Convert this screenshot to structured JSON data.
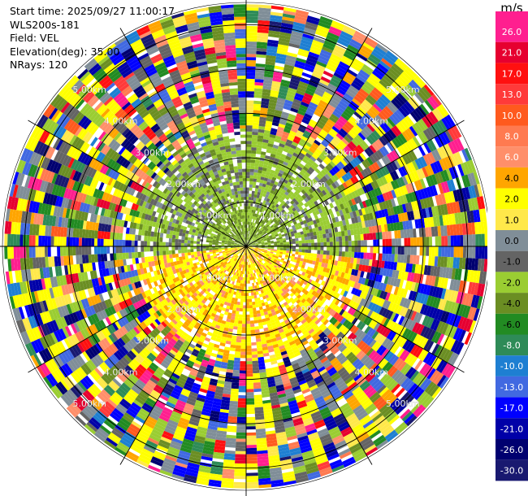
{
  "info": {
    "start_time": "Start time: 2025/09/27 11:00:17",
    "instrument": "WLS200s-181",
    "field": "Field: VEL",
    "elevation": "Elevation(deg): 35.00",
    "nrays": "NRays: 120"
  },
  "chart_data": {
    "type": "heatmap",
    "projection": "polar PPI",
    "field": "VEL",
    "units": "m/s",
    "nrays": 120,
    "elevation_deg": 35.0,
    "range_rings_km": [
      1.0,
      2.0,
      3.0,
      4.0,
      5.0
    ],
    "range_labels": [
      "1.00km",
      "2.00km",
      "3.00km",
      "4.00km",
      "5.00km"
    ],
    "max_range_km": 5.5,
    "colorbar": {
      "label": "m/s",
      "tick_labels": [
        "26.0",
        "21.0",
        "17.0",
        "13.0",
        "10.0",
        "8.0",
        "6.0",
        "4.0",
        "2.0",
        "1.0",
        "0.0",
        "-1.0",
        "-2.0",
        "-4.0",
        "-6.0",
        "-8.0",
        "-10.0",
        "-13.0",
        "-17.0",
        "-21.0",
        "-26.0",
        "-30.0"
      ],
      "colors": [
        "#ff1f8f",
        "#e60030",
        "#ff1010",
        "#ff3a3a",
        "#ff5a1e",
        "#ff7a50",
        "#ff8f6a",
        "#ffa500",
        "#ffff00",
        "#ffe84a",
        "#808e98",
        "#646464",
        "#9acd32",
        "#6b8e23",
        "#228b22",
        "#2e8b57",
        "#1e7fd2",
        "#4169e1",
        "#0000ff",
        "#0000a8",
        "#000070",
        "#191970"
      ]
    },
    "inner_region": {
      "near_zone_km": 2.6,
      "north_half_dominant": [
        "-1.0",
        "-2.0",
        "-4.0",
        "0.0"
      ],
      "south_half_dominant": [
        "4.0",
        "2.0",
        "6.0"
      ]
    }
  }
}
